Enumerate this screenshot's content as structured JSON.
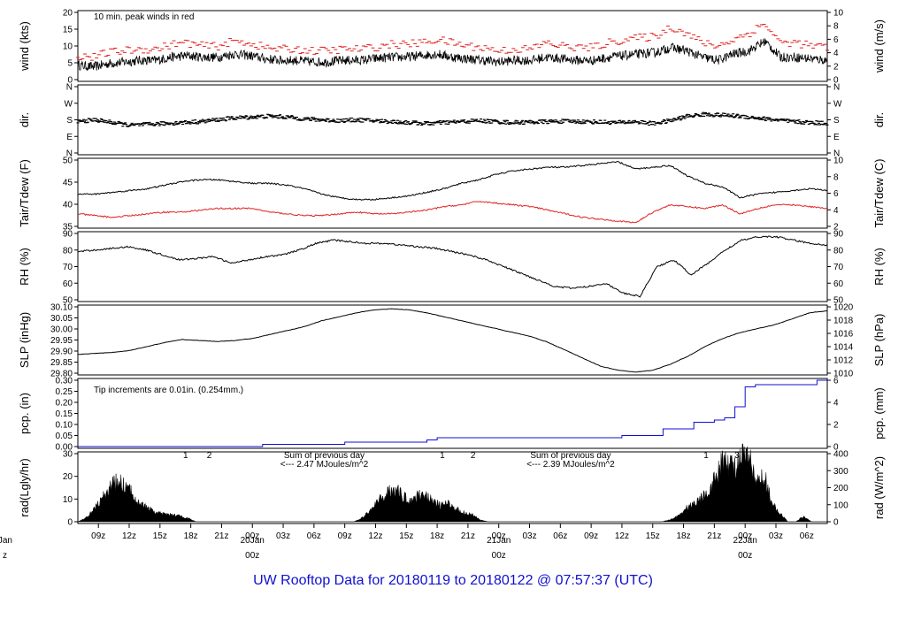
{
  "footer": {
    "label": "UW Rooftop Data for",
    "start": "20180119",
    "to": "to",
    "end": "20180122",
    "at": "@",
    "time": "07:57:37",
    "tz": "(UTC)"
  },
  "colors": {
    "peak": "#e02020",
    "dew": "#e02020",
    "pcp": "#1010d0",
    "rad_note": "#9020c0",
    "date": "#e01010"
  },
  "time_axis": {
    "tick_labels": [
      "09z",
      "12z",
      "15z",
      "18z",
      "21z",
      "00z",
      "03z",
      "06z",
      "09z",
      "12z",
      "15z",
      "18z",
      "21z",
      "00z",
      "03z",
      "06z",
      "09z",
      "12z",
      "15z",
      "18z",
      "21z",
      "00z",
      "03z",
      "06z"
    ],
    "tick_hours": [
      9,
      12,
      15,
      18,
      21,
      24,
      27,
      30,
      33,
      36,
      39,
      42,
      45,
      48,
      51,
      54,
      57,
      60,
      63,
      66,
      69,
      72,
      75,
      78
    ],
    "date_labels": [
      {
        "date": "20Jan",
        "hour_label": "00z",
        "hour": 24
      },
      {
        "date": "21Jan",
        "hour_label": "00z",
        "hour": 48
      },
      {
        "date": "22Jan",
        "hour_label": "00z",
        "hour": 72
      }
    ],
    "left_date_fragment": {
      "date": "Jan",
      "hour_label": "z"
    }
  },
  "chart_data": [
    {
      "type": "line",
      "panel": "wind",
      "ylabel_left": "wind (kts)",
      "ylabel_right": "wind (m/s)",
      "left_ticks": [
        "0",
        "5",
        "10",
        "15",
        "20"
      ],
      "right_ticks": [
        "0",
        "2",
        "4",
        "6",
        "8",
        "10"
      ],
      "ylim": [
        0,
        21
      ],
      "annotation": "10 min. peak winds in red",
      "series": [
        {
          "values_kts": [
            4.5,
            4,
            5,
            5.5,
            6,
            6,
            7,
            7.5,
            7,
            7,
            8,
            7.5,
            6.5,
            6,
            6,
            5.5,
            5.5,
            6,
            6,
            6.5,
            7,
            7,
            7.5,
            8,
            7,
            6.5,
            6,
            5.5,
            6,
            6,
            7,
            6.5,
            6,
            6,
            7,
            7.5,
            8,
            8.5,
            10,
            9,
            7,
            6,
            8,
            9,
            12,
            7,
            7,
            6.5,
            6
          ]
        },
        {
          "values_kts": [
            7,
            6.5,
            8,
            8.5,
            9,
            9,
            10.5,
            11,
            10,
            10,
            11.5,
            11,
            9.5,
            9,
            9,
            8.5,
            8.5,
            9,
            9,
            9.5,
            10.5,
            10.5,
            11,
            12,
            11,
            10,
            9.5,
            8.5,
            9,
            9,
            11,
            10,
            9.5,
            9.5,
            11,
            12,
            12.5,
            13,
            16,
            14,
            11,
            10,
            12,
            14,
            17,
            11,
            11,
            10,
            9.5
          ]
        }
      ]
    },
    {
      "type": "scatter",
      "panel": "dir",
      "ylabel_left": "dir.",
      "ylabel_right": "dir.",
      "left_ticks": [
        "N",
        "E",
        "S",
        "W",
        "N"
      ],
      "right_ticks": [
        "N",
        "E",
        "S",
        "W",
        "N"
      ],
      "ylim": [
        0,
        360
      ],
      "series": [
        {
          "values_deg": [
            170,
            180,
            165,
            150,
            155,
            160,
            165,
            170,
            180,
            190,
            195,
            200,
            195,
            185,
            180,
            175,
            180,
            175,
            170,
            165,
            160,
            165,
            170,
            175,
            170,
            165,
            168,
            170,
            172,
            170,
            168,
            165,
            170,
            160,
            175,
            200,
            210,
            205,
            200,
            190,
            180,
            170,
            165,
            162
          ]
        }
      ]
    },
    {
      "type": "line",
      "panel": "temp",
      "ylabel_left": "Tair/Tdew (F)",
      "ylabel_right": "Tair/Tdew (C)",
      "left_ticks": [
        "35",
        "40",
        "45",
        "50"
      ],
      "right_ticks": [
        "2",
        "4",
        "6",
        "8",
        "10"
      ],
      "ylim": [
        34,
        52.5
      ],
      "series": [
        {
          "values_f": [
            43,
            43,
            43.5,
            44,
            44.5,
            45.5,
            46.5,
            47,
            47,
            46.5,
            46,
            46,
            45.5,
            44.5,
            43,
            42,
            41.5,
            41.5,
            42,
            42.5,
            43.5,
            44.5,
            46,
            47,
            48.5,
            49.5,
            50,
            50.5,
            50.5,
            51,
            51.5,
            52,
            50,
            50.5,
            51,
            48,
            46,
            45,
            42,
            43,
            43.5,
            44,
            44.5,
            44
          ]
        },
        {
          "values_f": [
            37.5,
            37,
            36.5,
            37,
            37.5,
            38,
            38,
            38.5,
            39,
            39,
            39,
            38,
            37.5,
            37,
            37,
            37.5,
            38,
            37.5,
            37.5,
            38,
            38.5,
            39.5,
            40,
            41,
            40.5,
            40,
            39.5,
            38.5,
            37.5,
            36.5,
            36,
            35.5,
            35,
            38,
            40,
            39.5,
            39,
            40,
            37.5,
            39,
            40,
            40,
            39.5,
            39
          ]
        }
      ]
    },
    {
      "type": "line",
      "panel": "rh",
      "ylabel_left": "RH (%)",
      "ylabel_right": "RH (%)",
      "left_ticks": [
        "50",
        "60",
        "70",
        "80",
        "90"
      ],
      "right_ticks": [
        "50",
        "60",
        "70",
        "80",
        "90"
      ],
      "ylim": [
        50,
        90
      ],
      "series": [
        {
          "values_pct": [
            79,
            80,
            81,
            82,
            80,
            77,
            74,
            75,
            76,
            72,
            74,
            76,
            77,
            80,
            84,
            86,
            85,
            84,
            84,
            83,
            82,
            81,
            79,
            77,
            74,
            70,
            66,
            62,
            58,
            57,
            58,
            60,
            54,
            52,
            70,
            74,
            65,
            72,
            80,
            86,
            88,
            88,
            86,
            84,
            83
          ]
        }
      ]
    },
    {
      "type": "line",
      "panel": "slp",
      "ylabel_left": "SLP (inHg)",
      "ylabel_right": "SLP (hPa)",
      "left_ticks": [
        "29.80",
        "29.85",
        "29.90",
        "29.95",
        "30.00",
        "30.05",
        "30.10"
      ],
      "right_ticks": [
        "1010",
        "1012",
        "1014",
        "1016",
        "1018",
        "1020"
      ],
      "ylim": [
        29.785,
        30.12
      ],
      "series": [
        {
          "values_inhg": [
            29.88,
            29.885,
            29.89,
            29.9,
            29.92,
            29.94,
            29.955,
            29.95,
            29.945,
            29.95,
            29.96,
            29.98,
            30.0,
            30.02,
            30.05,
            30.07,
            30.09,
            30.105,
            30.11,
            30.105,
            30.09,
            30.07,
            30.05,
            30.03,
            30.01,
            29.99,
            29.97,
            29.94,
            29.9,
            29.86,
            29.82,
            29.8,
            29.79,
            29.8,
            29.83,
            29.87,
            29.92,
            29.96,
            29.99,
            30.01,
            30.03,
            30.06,
            30.09,
            30.1
          ]
        }
      ]
    },
    {
      "type": "line",
      "panel": "pcp",
      "ylabel_left": "pcp. (in)",
      "ylabel_right": "pcp. (mm)",
      "left_ticks": [
        "0.00",
        "0.05",
        "0.10",
        "0.15",
        "0.20",
        "0.25",
        "0.30"
      ],
      "right_ticks": [
        "0",
        "2",
        "4",
        "6"
      ],
      "ylim": [
        0,
        0.3
      ],
      "annotation": "Tip increments are 0.01in. (0.254mm.)",
      "series": [
        {
          "hours": [
            7,
            25,
            25,
            33,
            33,
            41,
            41,
            42,
            42,
            60,
            60,
            64,
            64,
            67,
            67,
            69,
            69,
            70,
            70,
            71,
            71,
            72,
            72,
            73,
            73,
            79,
            79,
            80
          ],
          "values_in": [
            0,
            0,
            0.01,
            0.01,
            0.02,
            0.02,
            0.03,
            0.03,
            0.04,
            0.04,
            0.05,
            0.05,
            0.08,
            0.08,
            0.11,
            0.11,
            0.12,
            0.12,
            0.13,
            0.13,
            0.18,
            0.18,
            0.27,
            0.27,
            0.28,
            0.28,
            0.3,
            0.3
          ]
        }
      ]
    },
    {
      "type": "area",
      "panel": "rad",
      "ylabel_left": "rad(Lgly/hr)",
      "ylabel_right": "rad (W/m^2)",
      "left_ticks": [
        "0",
        "10",
        "20",
        "30"
      ],
      "right_ticks": [
        "0",
        "100",
        "200",
        "300",
        "400"
      ],
      "ylim": [
        0,
        38
      ],
      "annotations": [
        {
          "text": "1",
          "hour": 17.5
        },
        {
          "text": "2",
          "hour": 19.8
        },
        {
          "text": "Sum of previous day",
          "hour": 31
        },
        {
          "text": "<--- 2.47 MJoules/m^2",
          "hour": 31
        },
        {
          "text": "1",
          "hour": 42.5
        },
        {
          "text": "2",
          "hour": 45.5
        },
        {
          "text": "Sum of previous day",
          "hour": 55
        },
        {
          "text": "<--- 2.39 MJoules/m^2",
          "hour": 55
        },
        {
          "text": "1",
          "hour": 68.2
        },
        {
          "text": "3",
          "hour": 71.2
        }
      ],
      "series": [
        {
          "values_lgly": [
            0,
            2,
            7,
            12,
            19,
            22,
            20,
            15,
            10,
            7,
            5,
            4,
            4,
            3,
            2,
            0,
            0,
            0,
            0,
            0,
            0,
            0,
            0,
            0,
            0,
            0,
            0,
            0,
            0,
            0,
            0,
            0,
            0,
            0,
            0,
            0,
            2,
            6,
            11,
            15,
            19,
            15,
            12,
            14,
            16,
            11,
            9,
            10,
            7,
            5,
            4,
            1,
            0,
            0,
            0,
            0,
            0,
            0,
            0,
            0,
            0,
            0,
            0,
            0,
            0,
            0,
            0,
            0,
            0,
            0,
            0,
            0,
            0,
            0,
            0,
            1,
            3,
            7,
            10,
            13,
            18,
            25,
            36,
            30,
            34,
            37,
            20,
            26,
            10,
            5,
            0,
            0,
            3,
            0,
            0,
            0
          ]
        }
      ]
    }
  ]
}
